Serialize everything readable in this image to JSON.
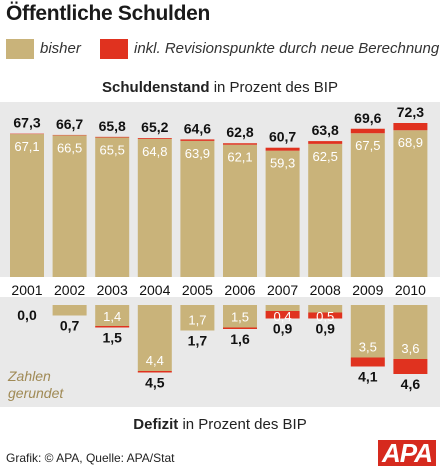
{
  "title": "Öffentliche Schulden",
  "legend": {
    "items": [
      {
        "label": "bisher",
        "color": "#c9b37a"
      },
      {
        "label": "inkl. Revisionspunkte durch neue Berechnung",
        "color": "#e0321f"
      }
    ]
  },
  "debt_subtitle_bold": "Schuldenstand",
  "debt_subtitle_rest": " in Prozent des BIP",
  "deficit_subtitle_bold": "Defizit",
  "deficit_subtitle_rest": " in Prozent des BIP",
  "note_line1": "Zahlen",
  "note_line2": "gerundet",
  "footer": "Grafik: © APA, Quelle: APA/Stat",
  "logo": "APA",
  "colors": {
    "old": "#c9b37a",
    "new": "#e0321f",
    "bg_strip": "#e9e9e9"
  },
  "chart_data": [
    {
      "type": "bar",
      "title": "Schuldenstand in Prozent des BIP",
      "categories": [
        "2001",
        "2002",
        "2003",
        "2004",
        "2005",
        "2006",
        "2007",
        "2008",
        "2009",
        "2010"
      ],
      "series": [
        {
          "name": "bisher",
          "values": [
            67.1,
            66.5,
            65.5,
            64.8,
            63.9,
            62.1,
            59.3,
            62.5,
            67.5,
            68.9
          ]
        },
        {
          "name": "inkl. Revisionspunkte durch neue Berechnung",
          "values": [
            67.3,
            66.7,
            65.8,
            65.2,
            64.6,
            62.8,
            60.7,
            63.8,
            69.6,
            72.3
          ]
        }
      ],
      "labels_old": [
        "67,1",
        "66,5",
        "65,5",
        "64,8",
        "63,9",
        "62,1",
        "59,3",
        "62,5",
        "67,5",
        "68,9"
      ],
      "labels_new": [
        "67,3",
        "66,7",
        "65,8",
        "65,2",
        "64,6",
        "62,8",
        "60,7",
        "63,8",
        "69,6",
        "72,3"
      ]
    },
    {
      "type": "bar",
      "title": "Defizit in Prozent des BIP",
      "categories": [
        "2001",
        "2002",
        "2003",
        "2004",
        "2005",
        "2006",
        "2007",
        "2008",
        "2009",
        "2010"
      ],
      "series": [
        {
          "name": "bisher",
          "values": [
            0.0,
            0.7,
            1.4,
            4.4,
            1.7,
            1.5,
            0.4,
            0.5,
            3.5,
            3.6
          ]
        },
        {
          "name": "inkl. Revisionspunkte durch neue Berechnung",
          "values": [
            0.0,
            0.7,
            1.5,
            4.5,
            1.7,
            1.6,
            0.9,
            0.9,
            4.1,
            4.6
          ]
        }
      ],
      "labels_old": [
        "",
        "",
        "1,4",
        "4,4",
        "1,7",
        "1,5",
        "0,4",
        "0,5",
        "3,5",
        "3,6"
      ],
      "labels_new": [
        "0,0",
        "0,7",
        "1,5",
        "4,5",
        "1,7",
        "1,6",
        "0,9",
        "0,9",
        "4,1",
        "4,6"
      ]
    }
  ]
}
